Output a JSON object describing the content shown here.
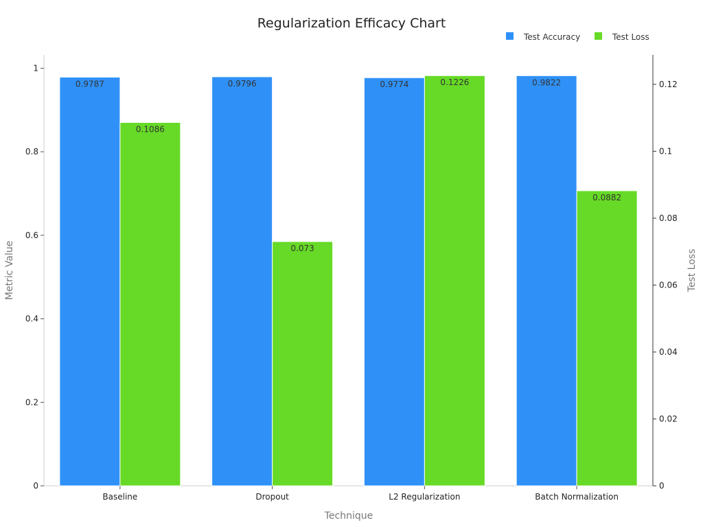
{
  "chart_data": {
    "type": "bar",
    "title": "Regularization Efficacy Chart",
    "xlabel": "Technique",
    "ylabel": "Metric Value",
    "y2label": "Test Loss",
    "categories": [
      "Baseline",
      "Dropout",
      "L2 Regularization",
      "Batch Normalization"
    ],
    "series": [
      {
        "name": "Test Accuracy",
        "axis": "left",
        "color": "#2f91f7",
        "values": [
          0.9787,
          0.9796,
          0.9774,
          0.9822
        ],
        "labels": [
          "0.9787",
          "0.9796",
          "0.9774",
          "0.9822"
        ]
      },
      {
        "name": "Test Loss",
        "axis": "right",
        "color": "#66da26",
        "values": [
          0.1086,
          0.073,
          0.1226,
          0.0882
        ],
        "labels": [
          "0.1086",
          "0.073",
          "0.1226",
          "0.0882"
        ]
      }
    ],
    "ylim": [
      0,
      1.032
    ],
    "y2lim": [
      0,
      0.1288
    ],
    "yticks": [
      0,
      0.2,
      0.4,
      0.6,
      0.8,
      1
    ],
    "ytick_labels": [
      "0",
      "0.2",
      "0.4",
      "0.6",
      "0.8",
      "1"
    ],
    "y2ticks": [
      0,
      0.02,
      0.04,
      0.06,
      0.08,
      0.1,
      0.12
    ],
    "y2tick_labels": [
      "0",
      "0.02",
      "0.04",
      "0.06",
      "0.08",
      "0.1",
      "0.12"
    ],
    "grid": false,
    "legend_position": "top-right"
  }
}
